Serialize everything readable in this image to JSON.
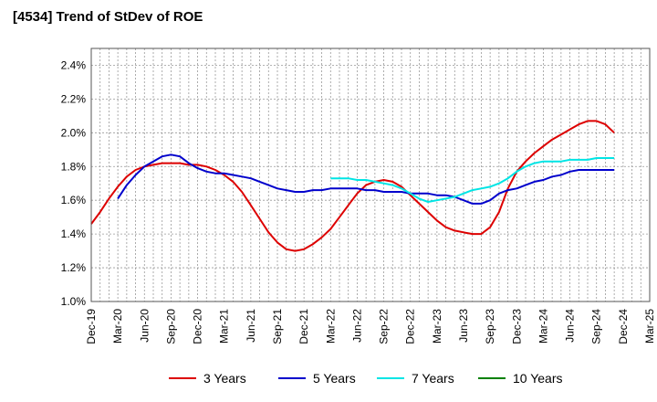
{
  "chart_data": {
    "type": "line",
    "title": "[4534]  Trend of StDev of ROE",
    "xlabel": "",
    "ylabel": "",
    "ylim": [
      1.0,
      2.5
    ],
    "y_ticks": [
      "1.0%",
      "1.2%",
      "1.4%",
      "1.6%",
      "1.8%",
      "2.0%",
      "2.2%",
      "2.4%"
    ],
    "y_tick_values": [
      1.0,
      1.2,
      1.4,
      1.6,
      1.8,
      2.0,
      2.2,
      2.4
    ],
    "x_ticks": [
      "Dec-19",
      "Mar-20",
      "Jun-20",
      "Sep-20",
      "Dec-20",
      "Mar-21",
      "Jun-21",
      "Sep-21",
      "Dec-21",
      "Mar-22",
      "Jun-22",
      "Sep-22",
      "Dec-22",
      "Mar-23",
      "Jun-23",
      "Sep-23",
      "Dec-23",
      "Mar-24",
      "Jun-24",
      "Sep-24",
      "Dec-24",
      "Mar-25"
    ],
    "grid": true,
    "legend_position": "bottom",
    "series": [
      {
        "name": "3 Years",
        "color": "#dd0000",
        "points": [
          [
            0,
            1.46
          ],
          [
            1,
            1.53
          ],
          [
            2,
            1.61
          ],
          [
            3,
            1.68
          ],
          [
            4,
            1.74
          ],
          [
            5,
            1.78
          ],
          [
            6,
            1.8
          ],
          [
            7,
            1.81
          ],
          [
            8,
            1.82
          ],
          [
            9,
            1.82
          ],
          [
            10,
            1.82
          ],
          [
            11,
            1.81
          ],
          [
            12,
            1.81
          ],
          [
            13,
            1.8
          ],
          [
            14,
            1.78
          ],
          [
            15,
            1.75
          ],
          [
            16,
            1.71
          ],
          [
            17,
            1.65
          ],
          [
            18,
            1.57
          ],
          [
            19,
            1.49
          ],
          [
            20,
            1.41
          ],
          [
            21,
            1.35
          ],
          [
            22,
            1.31
          ],
          [
            23,
            1.3
          ],
          [
            24,
            1.31
          ],
          [
            25,
            1.34
          ],
          [
            26,
            1.38
          ],
          [
            27,
            1.43
          ],
          [
            28,
            1.5
          ],
          [
            29,
            1.57
          ],
          [
            30,
            1.64
          ],
          [
            31,
            1.69
          ],
          [
            32,
            1.71
          ],
          [
            33,
            1.72
          ],
          [
            34,
            1.71
          ],
          [
            35,
            1.68
          ],
          [
            36,
            1.63
          ],
          [
            37,
            1.58
          ],
          [
            38,
            1.53
          ],
          [
            39,
            1.48
          ],
          [
            40,
            1.44
          ],
          [
            41,
            1.42
          ],
          [
            42,
            1.41
          ],
          [
            43,
            1.4
          ],
          [
            44,
            1.4
          ],
          [
            45,
            1.44
          ],
          [
            46,
            1.53
          ],
          [
            47,
            1.67
          ],
          [
            48,
            1.77
          ],
          [
            49,
            1.83
          ],
          [
            50,
            1.88
          ],
          [
            51,
            1.92
          ],
          [
            52,
            1.96
          ],
          [
            53,
            1.99
          ],
          [
            54,
            2.02
          ],
          [
            55,
            2.05
          ],
          [
            56,
            2.07
          ],
          [
            57,
            2.07
          ],
          [
            58,
            2.05
          ],
          [
            59,
            2.0
          ]
        ]
      },
      {
        "name": "5 Years",
        "color": "#0000cc",
        "points": [
          [
            3,
            1.61
          ],
          [
            4,
            1.69
          ],
          [
            5,
            1.75
          ],
          [
            6,
            1.8
          ],
          [
            7,
            1.83
          ],
          [
            8,
            1.86
          ],
          [
            9,
            1.87
          ],
          [
            10,
            1.86
          ],
          [
            11,
            1.82
          ],
          [
            12,
            1.79
          ],
          [
            13,
            1.77
          ],
          [
            14,
            1.76
          ],
          [
            15,
            1.76
          ],
          [
            16,
            1.75
          ],
          [
            17,
            1.74
          ],
          [
            18,
            1.73
          ],
          [
            19,
            1.71
          ],
          [
            20,
            1.69
          ],
          [
            21,
            1.67
          ],
          [
            22,
            1.66
          ],
          [
            23,
            1.65
          ],
          [
            24,
            1.65
          ],
          [
            25,
            1.66
          ],
          [
            26,
            1.66
          ],
          [
            27,
            1.67
          ],
          [
            28,
            1.67
          ],
          [
            29,
            1.67
          ],
          [
            30,
            1.67
          ],
          [
            31,
            1.66
          ],
          [
            32,
            1.66
          ],
          [
            33,
            1.65
          ],
          [
            34,
            1.65
          ],
          [
            35,
            1.65
          ],
          [
            36,
            1.64
          ],
          [
            37,
            1.64
          ],
          [
            38,
            1.64
          ],
          [
            39,
            1.63
          ],
          [
            40,
            1.63
          ],
          [
            41,
            1.62
          ],
          [
            42,
            1.6
          ],
          [
            43,
            1.58
          ],
          [
            44,
            1.58
          ],
          [
            45,
            1.6
          ],
          [
            46,
            1.64
          ],
          [
            47,
            1.66
          ],
          [
            48,
            1.67
          ],
          [
            49,
            1.69
          ],
          [
            50,
            1.71
          ],
          [
            51,
            1.72
          ],
          [
            52,
            1.74
          ],
          [
            53,
            1.75
          ],
          [
            54,
            1.77
          ],
          [
            55,
            1.78
          ],
          [
            56,
            1.78
          ],
          [
            57,
            1.78
          ],
          [
            58,
            1.78
          ],
          [
            59,
            1.78
          ]
        ]
      },
      {
        "name": "7 Years",
        "color": "#00e5e5",
        "points": [
          [
            27,
            1.73
          ],
          [
            28,
            1.73
          ],
          [
            29,
            1.73
          ],
          [
            30,
            1.72
          ],
          [
            31,
            1.72
          ],
          [
            32,
            1.71
          ],
          [
            33,
            1.7
          ],
          [
            34,
            1.69
          ],
          [
            35,
            1.67
          ],
          [
            36,
            1.64
          ],
          [
            37,
            1.61
          ],
          [
            38,
            1.59
          ],
          [
            39,
            1.6
          ],
          [
            40,
            1.61
          ],
          [
            41,
            1.62
          ],
          [
            42,
            1.64
          ],
          [
            43,
            1.66
          ],
          [
            44,
            1.67
          ],
          [
            45,
            1.68
          ],
          [
            46,
            1.7
          ],
          [
            47,
            1.73
          ],
          [
            48,
            1.77
          ],
          [
            49,
            1.8
          ],
          [
            50,
            1.82
          ],
          [
            51,
            1.83
          ],
          [
            52,
            1.83
          ],
          [
            53,
            1.83
          ],
          [
            54,
            1.84
          ],
          [
            55,
            1.84
          ],
          [
            56,
            1.84
          ],
          [
            57,
            1.85
          ],
          [
            58,
            1.85
          ],
          [
            59,
            1.85
          ]
        ]
      },
      {
        "name": "10 Years",
        "color": "#008000",
        "points": []
      }
    ]
  }
}
